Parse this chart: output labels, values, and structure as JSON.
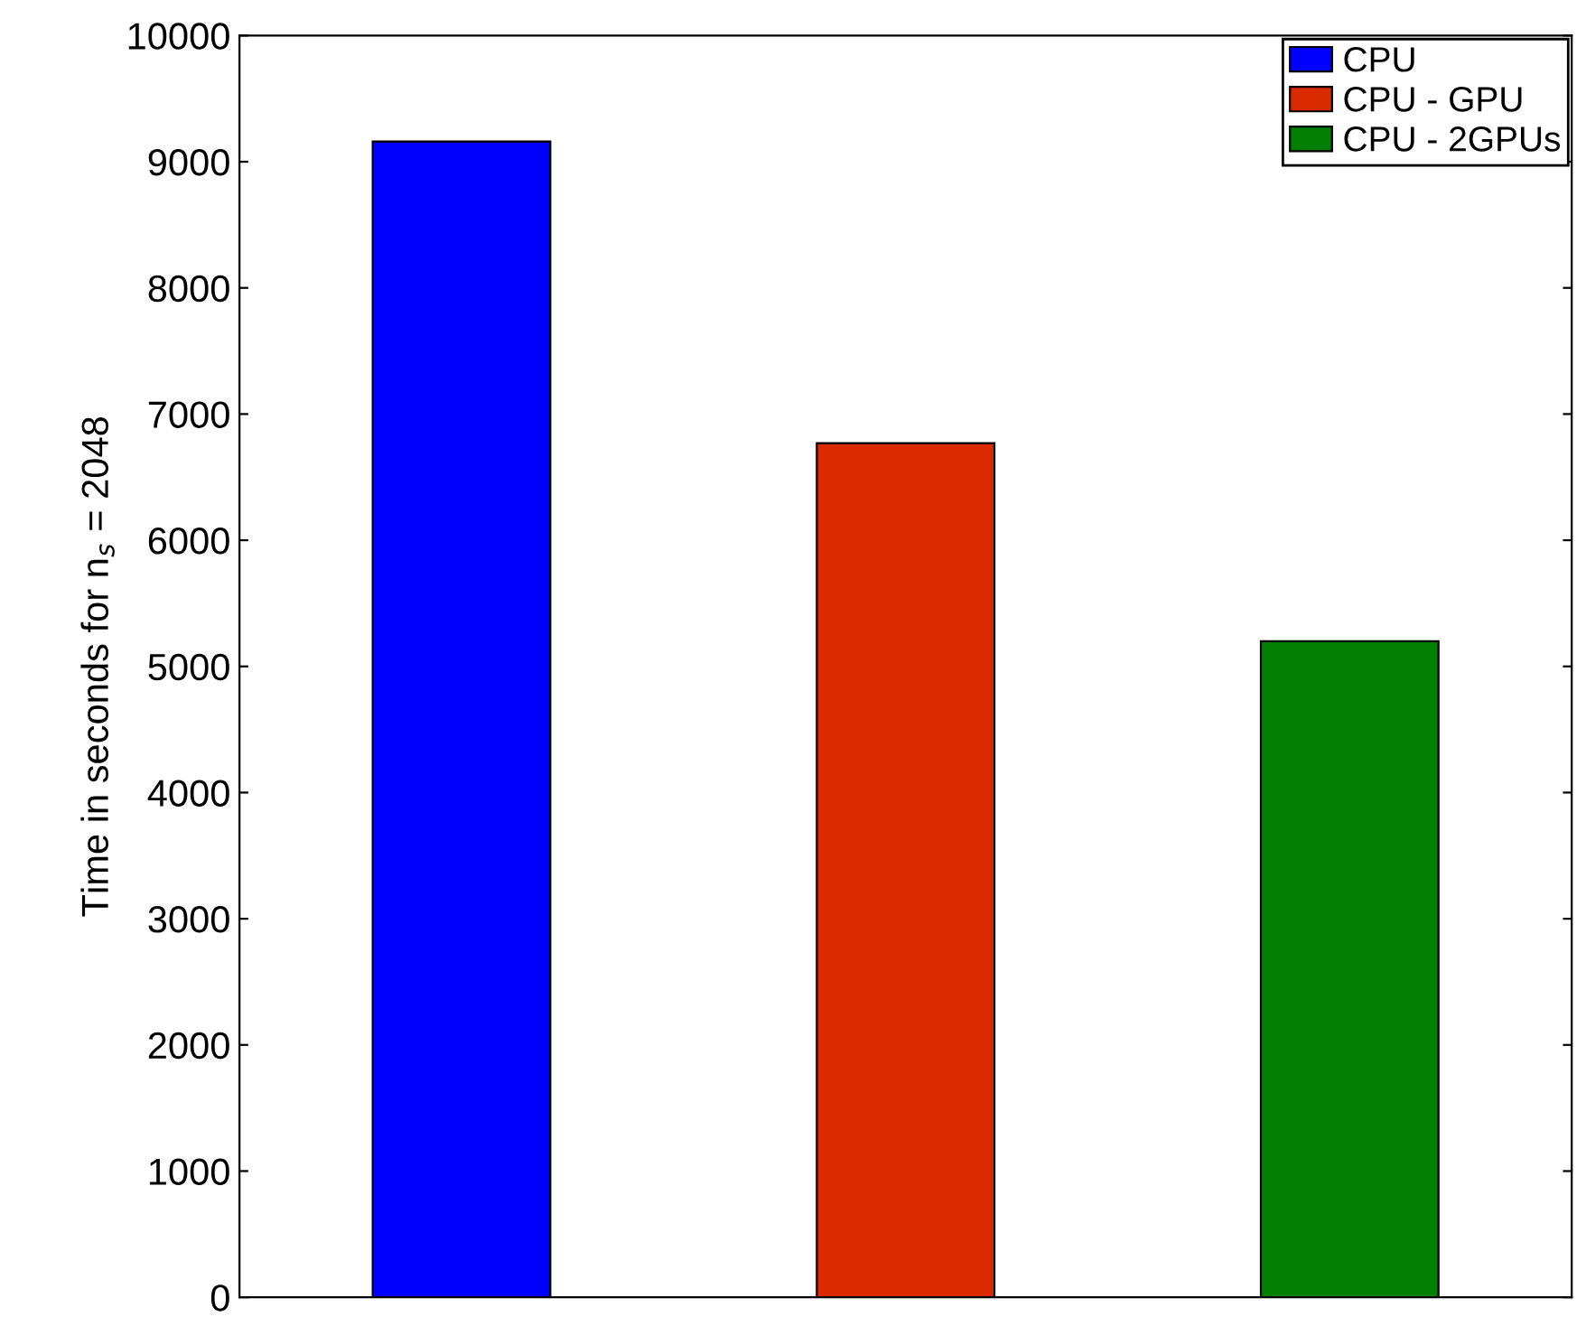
{
  "chart_data": {
    "type": "bar",
    "ylabel": "Time in seconds for n$_{s}$ = 2048",
    "categories": [
      null,
      null,
      null
    ],
    "series": [
      {
        "name": "CPU",
        "color": "#0000ff",
        "values": [
          9160,
          null,
          null
        ]
      },
      {
        "name": "CPU - GPU",
        "color": "#d92a00",
        "values": [
          null,
          6770,
          null
        ]
      },
      {
        "name": "CPU - 2GPUs",
        "color": "#007f00",
        "values": [
          null,
          null,
          5200
        ]
      }
    ],
    "ylim": [
      0,
      10000
    ],
    "yticks": [
      0,
      1000,
      2000,
      3000,
      4000,
      5000,
      6000,
      7000,
      8000,
      9000,
      10000
    ],
    "grid": false,
    "legend": "top right"
  }
}
